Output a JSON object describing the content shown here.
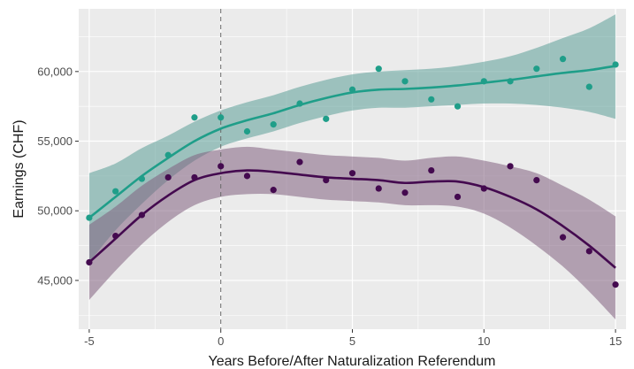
{
  "chart_data": {
    "type": "scatter",
    "title": "",
    "xlabel": "Years Before/After Naturalization Referendum",
    "ylabel": "Earnings (CHF)",
    "xlim": [
      -5.4,
      15.4
    ],
    "ylim": [
      41500,
      64500
    ],
    "x_ticks": [
      -5,
      0,
      5,
      10,
      15
    ],
    "x_tick_labels": [
      "-5",
      "0",
      "5",
      "10",
      "15"
    ],
    "y_ticks": [
      45000,
      50000,
      55000,
      60000
    ],
    "y_tick_labels": [
      "45,000",
      "50,000",
      "55,000",
      "60,000"
    ],
    "reference_line_x": 0,
    "grid": true,
    "legend": "none",
    "panel_background": "#ebebeb",
    "grid_color": "#ffffff",
    "series": [
      {
        "color": "#1f9e89",
        "band_color": "#5b9f97",
        "points": [
          [
            -5,
            49500
          ],
          [
            -4,
            51400
          ],
          [
            -3,
            52300
          ],
          [
            -2,
            54000
          ],
          [
            -1,
            56700
          ],
          [
            0,
            56700
          ],
          [
            1,
            55700
          ],
          [
            2,
            56200
          ],
          [
            3,
            57700
          ],
          [
            4,
            56600
          ],
          [
            5,
            58700
          ],
          [
            6,
            60200
          ],
          [
            7,
            59300
          ],
          [
            8,
            58000
          ],
          [
            9,
            57500
          ],
          [
            10,
            59300
          ],
          [
            11,
            59300
          ],
          [
            12,
            60200
          ],
          [
            13,
            60900
          ],
          [
            14,
            58900
          ],
          [
            15,
            60500
          ]
        ],
        "smooth_fit": [
          [
            -5,
            49500
          ],
          [
            -4,
            51000
          ],
          [
            -3,
            52500
          ],
          [
            -2,
            53800
          ],
          [
            -1,
            55000
          ],
          [
            0,
            55900
          ],
          [
            1,
            56500
          ],
          [
            2,
            57000
          ],
          [
            3,
            57600
          ],
          [
            4,
            58100
          ],
          [
            5,
            58500
          ],
          [
            6,
            58700
          ],
          [
            7,
            58750
          ],
          [
            8,
            58850
          ],
          [
            9,
            59000
          ],
          [
            10,
            59200
          ],
          [
            11,
            59400
          ],
          [
            12,
            59650
          ],
          [
            13,
            59900
          ],
          [
            14,
            60100
          ],
          [
            15,
            60400
          ]
        ],
        "ci_lower": [
          [
            -5,
            46300
          ],
          [
            -4,
            48600
          ],
          [
            -3,
            50500
          ],
          [
            -2,
            52200
          ],
          [
            -1,
            53600
          ],
          [
            0,
            54600
          ],
          [
            1,
            55200
          ],
          [
            2,
            55700
          ],
          [
            3,
            56300
          ],
          [
            4,
            56800
          ],
          [
            5,
            57200
          ],
          [
            6,
            57400
          ],
          [
            7,
            57400
          ],
          [
            8,
            57500
          ],
          [
            9,
            57600
          ],
          [
            10,
            57700
          ],
          [
            11,
            57700
          ],
          [
            12,
            57600
          ],
          [
            13,
            57400
          ],
          [
            14,
            57100
          ],
          [
            15,
            56600
          ]
        ],
        "ci_upper": [
          [
            -5,
            52700
          ],
          [
            -4,
            53400
          ],
          [
            -3,
            54500
          ],
          [
            -2,
            55400
          ],
          [
            -1,
            56400
          ],
          [
            0,
            57200
          ],
          [
            1,
            57800
          ],
          [
            2,
            58300
          ],
          [
            3,
            58900
          ],
          [
            4,
            59400
          ],
          [
            5,
            59800
          ],
          [
            6,
            60000
          ],
          [
            7,
            60100
          ],
          [
            8,
            60200
          ],
          [
            9,
            60400
          ],
          [
            10,
            60700
          ],
          [
            11,
            61100
          ],
          [
            12,
            61700
          ],
          [
            13,
            62400
          ],
          [
            14,
            63100
          ],
          [
            15,
            64100
          ]
        ]
      },
      {
        "color": "#440a4f",
        "band_color": "#82617f",
        "points": [
          [
            -5,
            46300
          ],
          [
            -4,
            48200
          ],
          [
            -3,
            49700
          ],
          [
            -2,
            52400
          ],
          [
            -1,
            52400
          ],
          [
            0,
            53200
          ],
          [
            1,
            52500
          ],
          [
            2,
            51500
          ],
          [
            3,
            53500
          ],
          [
            4,
            52200
          ],
          [
            5,
            52700
          ],
          [
            6,
            51600
          ],
          [
            7,
            51300
          ],
          [
            8,
            52900
          ],
          [
            9,
            51000
          ],
          [
            10,
            51600
          ],
          [
            11,
            53200
          ],
          [
            12,
            52200
          ],
          [
            13,
            48100
          ],
          [
            14,
            47100
          ],
          [
            15,
            44700
          ]
        ],
        "smooth_fit": [
          [
            -5,
            46300
          ],
          [
            -4,
            48000
          ],
          [
            -3,
            49700
          ],
          [
            -2,
            51100
          ],
          [
            -1,
            52200
          ],
          [
            0,
            52700
          ],
          [
            1,
            52900
          ],
          [
            2,
            52800
          ],
          [
            3,
            52600
          ],
          [
            4,
            52400
          ],
          [
            5,
            52300
          ],
          [
            6,
            52200
          ],
          [
            7,
            52000
          ],
          [
            8,
            52100
          ],
          [
            9,
            52100
          ],
          [
            10,
            51700
          ],
          [
            11,
            51000
          ],
          [
            12,
            50100
          ],
          [
            13,
            48900
          ],
          [
            14,
            47500
          ],
          [
            15,
            45900
          ]
        ],
        "ci_lower": [
          [
            -5,
            43600
          ],
          [
            -4,
            45700
          ],
          [
            -3,
            47600
          ],
          [
            -2,
            49200
          ],
          [
            -1,
            50400
          ],
          [
            0,
            51000
          ],
          [
            1,
            51200
          ],
          [
            2,
            51200
          ],
          [
            3,
            51000
          ],
          [
            4,
            50800
          ],
          [
            5,
            50700
          ],
          [
            6,
            50600
          ],
          [
            7,
            50400
          ],
          [
            8,
            50400
          ],
          [
            9,
            50300
          ],
          [
            10,
            49800
          ],
          [
            11,
            48800
          ],
          [
            12,
            47500
          ],
          [
            13,
            46000
          ],
          [
            14,
            44200
          ],
          [
            15,
            42200
          ]
        ],
        "ci_upper": [
          [
            -5,
            49000
          ],
          [
            -4,
            50300
          ],
          [
            -3,
            51800
          ],
          [
            -2,
            53000
          ],
          [
            -1,
            54000
          ],
          [
            0,
            54400
          ],
          [
            1,
            54600
          ],
          [
            2,
            54400
          ],
          [
            3,
            54200
          ],
          [
            4,
            54000
          ],
          [
            5,
            53900
          ],
          [
            6,
            53800
          ],
          [
            7,
            53600
          ],
          [
            8,
            53800
          ],
          [
            9,
            53900
          ],
          [
            10,
            53600
          ],
          [
            11,
            53200
          ],
          [
            12,
            52700
          ],
          [
            13,
            51800
          ],
          [
            14,
            50800
          ],
          [
            15,
            49600
          ]
        ]
      }
    ]
  }
}
